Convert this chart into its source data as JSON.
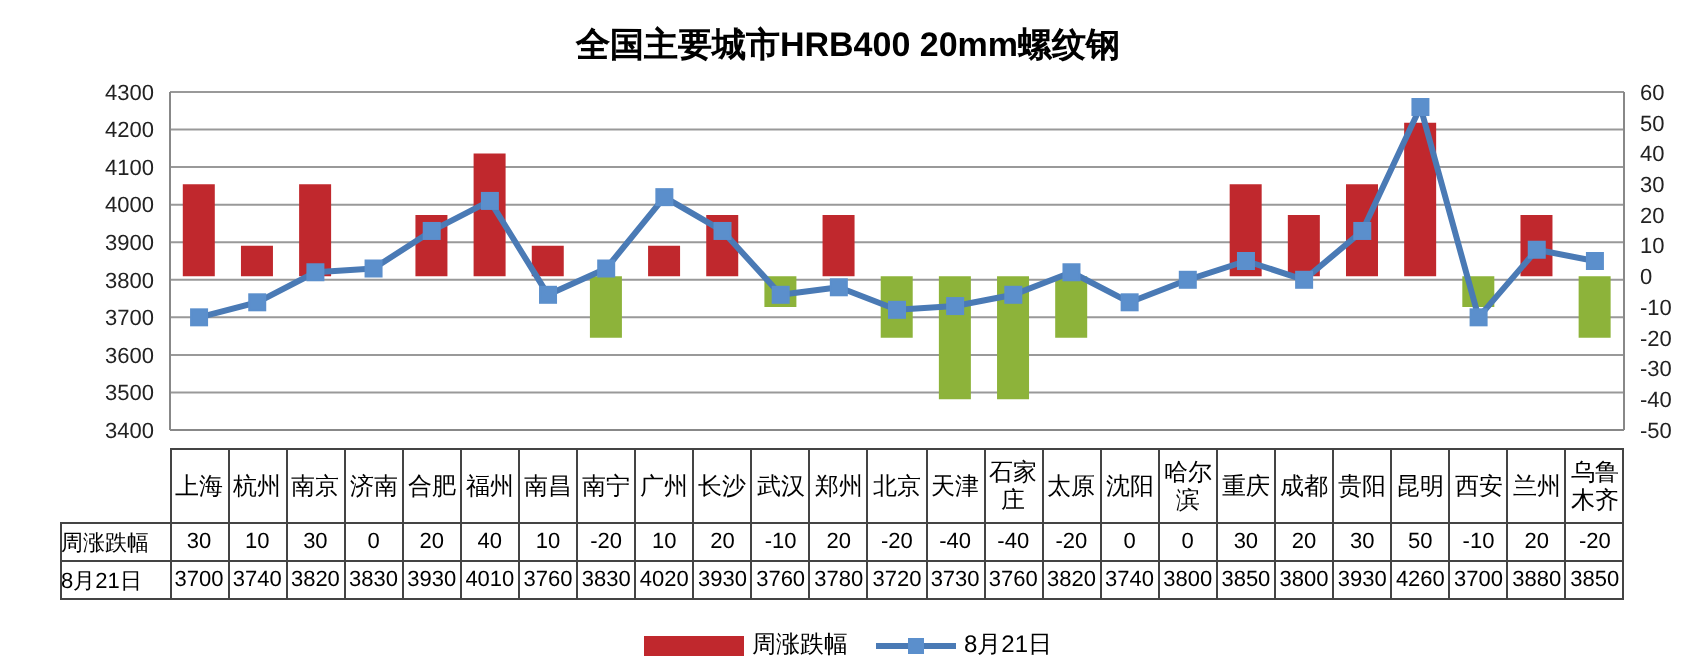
{
  "chart_data": {
    "type": "bar",
    "title": "全国主要城市HRB400 20mm螺纹钢",
    "categories": [
      "上海",
      "杭州",
      "南京",
      "济南",
      "合肥",
      "福州",
      "南昌",
      "南宁",
      "广州",
      "长沙",
      "武汉",
      "郑州",
      "北京",
      "天津",
      "石家庄",
      "太原",
      "沈阳",
      "哈尔滨",
      "重庆",
      "成都",
      "贵阳",
      "昆明",
      "西安",
      "兰州",
      "乌鲁木齐"
    ],
    "series": [
      {
        "name": "周涨跌幅",
        "axis": "y2",
        "color": "#c0282d",
        "colors": [
          "#c0282d",
          "#c0282d",
          "#c0282d",
          "#c0282d",
          "#c0282d",
          "#c0282d",
          "#c0282d",
          "#8db33a",
          "#c0282d",
          "#c0282d",
          "#8db33a",
          "#c0282d",
          "#8db33a",
          "#8db33a",
          "#8db33a",
          "#8db33a",
          "#c0282d",
          "#c0282d",
          "#c0282d",
          "#c0282d",
          "#c0282d",
          "#c0282d",
          "#8db33a",
          "#c0282d",
          "#8db33a"
        ],
        "values": [
          30,
          10,
          30,
          0,
          20,
          40,
          10,
          -20,
          10,
          20,
          -10,
          20,
          -20,
          -40,
          -40,
          -20,
          0,
          0,
          30,
          20,
          30,
          50,
          -10,
          20,
          -20
        ]
      },
      {
        "name": "8月21日",
        "type": "line",
        "color": "#4a7ab5",
        "values": [
          3700,
          3740,
          3820,
          3830,
          3930,
          4010,
          3760,
          3830,
          4020,
          3930,
          3760,
          3780,
          3720,
          3730,
          3760,
          3820,
          3740,
          3800,
          3850,
          3800,
          3930,
          4260,
          3700,
          3880,
          3850
        ]
      }
    ],
    "ylim": [
      3400,
      4300
    ],
    "yticks": [
      3400,
      3500,
      3600,
      3700,
      3800,
      3900,
      4000,
      4100,
      4200,
      4300
    ],
    "y2lim": [
      -50,
      60
    ],
    "y2ticks": [
      -50,
      -40,
      -30,
      -20,
      -10,
      0,
      10,
      20,
      30,
      40,
      50,
      60
    ],
    "grid": "y",
    "legend": "bottom",
    "data_labels": true,
    "marker": "square",
    "line_style": "solid"
  }
}
